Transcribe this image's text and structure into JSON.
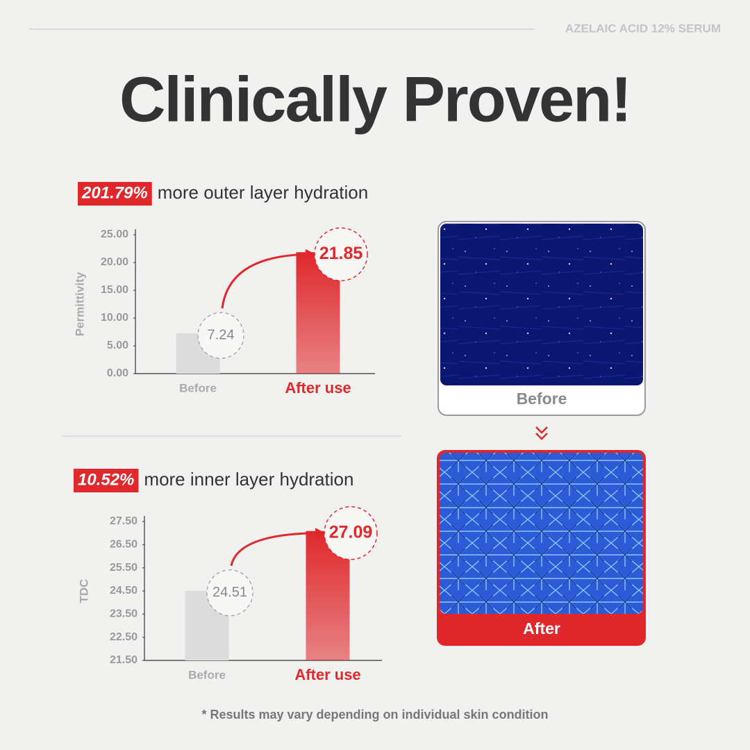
{
  "header": {
    "brand": "AZELAIC ACID 12% SERUM",
    "title": "Clinically Proven!"
  },
  "chart_data": [
    {
      "type": "bar",
      "highlight": "201.79%",
      "subtitle": "more outer layer hydration",
      "ylabel": "Permittivity",
      "categories": [
        "Before",
        "After use"
      ],
      "values": [
        7.24,
        21.85
      ],
      "colors": [
        "#dcdcdc",
        "#e0282c"
      ],
      "ylim": [
        0,
        25
      ],
      "yticks": [
        {
          "value": 0,
          "label": "0.00"
        },
        {
          "value": 5,
          "label": "5.00"
        },
        {
          "value": 10,
          "label": "10.00"
        },
        {
          "value": 15,
          "label": "15.00"
        },
        {
          "value": 20,
          "label": "20.00"
        },
        {
          "value": 25,
          "label": "25.00"
        }
      ]
    },
    {
      "type": "bar",
      "highlight": "10.52%",
      "subtitle": "more inner layer hydration",
      "ylabel": "TDC",
      "categories": [
        "Before",
        "After use"
      ],
      "values": [
        24.51,
        27.09
      ],
      "colors": [
        "#dcdcdc",
        "#e0282c"
      ],
      "ylim": [
        21.5,
        27.5
      ],
      "yticks": [
        {
          "value": 21.5,
          "label": "21.50"
        },
        {
          "value": 22.5,
          "label": "22.50"
        },
        {
          "value": 23.5,
          "label": "23.50"
        },
        {
          "value": 24.5,
          "label": "24.50"
        },
        {
          "value": 25.5,
          "label": "25.50"
        },
        {
          "value": 26.5,
          "label": "26.50"
        },
        {
          "value": 27.5,
          "label": "27.50"
        }
      ]
    }
  ],
  "images": {
    "before": "Before",
    "after": "After"
  },
  "footnote": "* Results may vary depending on individual skin condition"
}
